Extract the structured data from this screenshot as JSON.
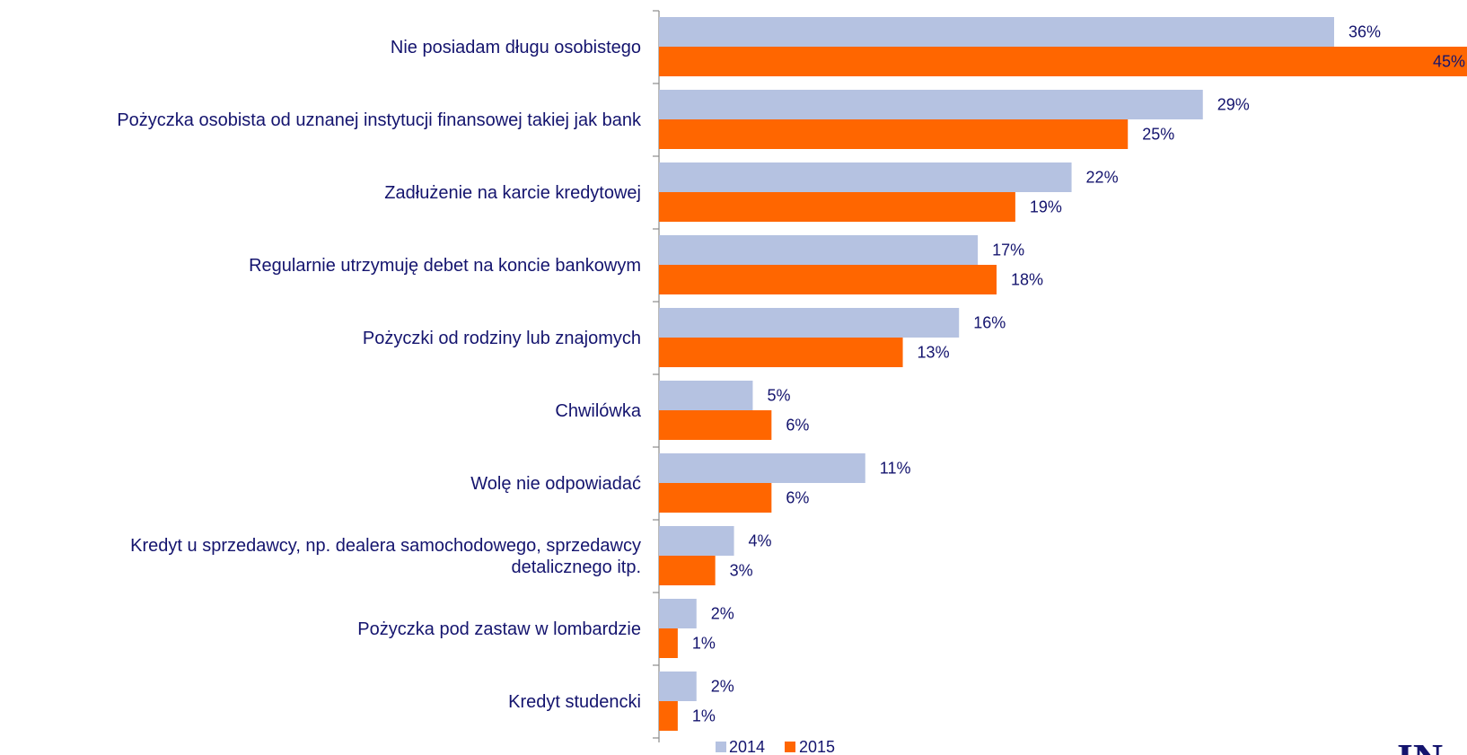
{
  "chart_data": {
    "type": "bar",
    "orientation": "horizontal",
    "categories": [
      [
        "Nie posiadam długu osobistego"
      ],
      [
        "Pożyczka osobista od uznanej instytucji finansowej takiej jak bank"
      ],
      [
        "Zadłużenie na karcie kredytowej"
      ],
      [
        "Regularnie utrzymuję debet na koncie bankowym"
      ],
      [
        "Pożyczki od rodziny lub znajomych"
      ],
      [
        "Chwilówka"
      ],
      [
        "Wolę nie odpowiadać"
      ],
      [
        "Kredyt u sprzedawcy, np. dealera samochodowego, sprzedawcy",
        "detalicznego itp."
      ],
      [
        "Pożyczka pod zastaw w lombardzie"
      ],
      [
        "Kredyt studencki"
      ]
    ],
    "series": [
      {
        "name": "2014",
        "color": "#b5c2e1",
        "values": [
          36,
          29,
          22,
          17,
          16,
          5,
          11,
          4,
          2,
          2
        ],
        "labels": [
          "36%",
          "29%",
          "22%",
          "17%",
          "16%",
          "5%",
          "11%",
          "4%",
          "2%",
          "2%"
        ]
      },
      {
        "name": "2015",
        "color": "#ff6600",
        "values": [
          45,
          25,
          19,
          18,
          13,
          6,
          6,
          3,
          1,
          1
        ],
        "labels": [
          "45%",
          "25%",
          "19%",
          "18%",
          "13%",
          "6%",
          "6%",
          "3%",
          "1%",
          "1%"
        ]
      }
    ],
    "xlim": [
      0,
      45
    ],
    "grid": false,
    "legend_position": "bottom",
    "text_color": "#14146e",
    "axis_color": "#8c8c8c"
  },
  "logo": {
    "text": "IN"
  }
}
